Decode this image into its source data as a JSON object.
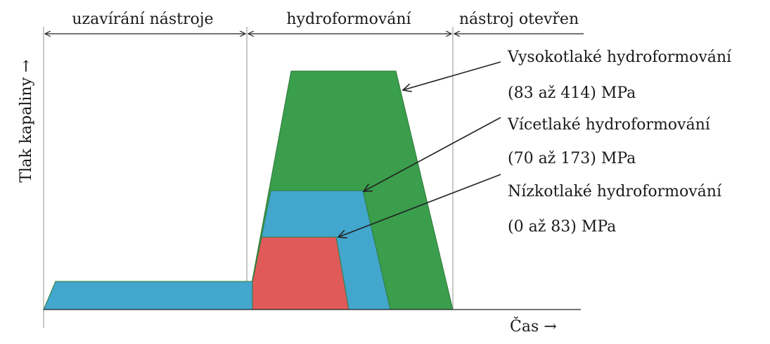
{
  "phases": {
    "closing": "uzavírání nástroje",
    "forming": "hydroformování",
    "open": "nástroj otevřen"
  },
  "axes": {
    "y_label": "Tlak kapaliny →",
    "x_label": "Čas →"
  },
  "annotations": {
    "high": {
      "name": "Vysokotlaké hydroformování",
      "range": "(83 až 414) MPa"
    },
    "multi": {
      "name": "Vícetlaké hydroformování",
      "range": "(70 až 173) MPa"
    },
    "low": {
      "name": "Nízkotlaké hydroformování",
      "range": "(0 až 83) MPa"
    }
  },
  "colors": {
    "green": "#3a9e4c",
    "blue": "#43a6cd",
    "red": "#e15a5a",
    "line": "#222222",
    "guide": "#b5b5b5"
  }
}
